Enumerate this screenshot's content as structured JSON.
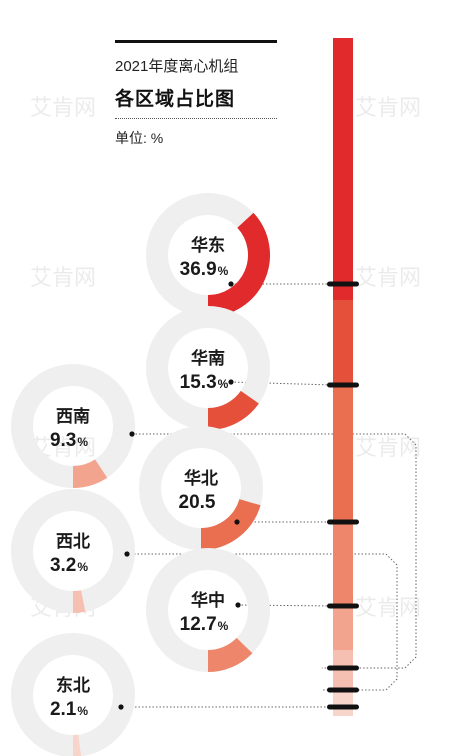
{
  "header": {
    "subtitle": "2021年度离心机组",
    "title": "各区域占比图",
    "unit": "单位: %"
  },
  "chart_data": {
    "type": "pie",
    "subtitle": "2021年度离心机组",
    "title": "各区域占比图",
    "unit": "单位: %",
    "categories": [
      "华东",
      "华南",
      "西南",
      "华北",
      "西北",
      "华中",
      "东北"
    ],
    "values": [
      36.9,
      15.3,
      9.3,
      20.5,
      3.2,
      12.7,
      2.1
    ],
    "value_labels": [
      "36.9",
      "15.3",
      "9.3",
      "20.5",
      "3.2",
      "12.7",
      "2.1"
    ],
    "show_percent_sign": [
      true,
      true,
      true,
      false,
      true,
      true,
      true
    ],
    "percent_sign": "%",
    "colors": {
      "华东": "#e02a2b",
      "华南": "#e5503b",
      "西南": "#f3a48f",
      "华北": "#ea6e50",
      "西北": "#f5c0b2",
      "华中": "#ed866a",
      "东北": "#f8d5cb"
    },
    "ring_background": "#efefef",
    "bar_colors": [
      "#e02a2b",
      "#e5503b",
      "#ea6e50",
      "#ed866a",
      "#f3a48f",
      "#f5c0b2",
      "#f8d5cb"
    ],
    "watermark": "艾肯网"
  }
}
